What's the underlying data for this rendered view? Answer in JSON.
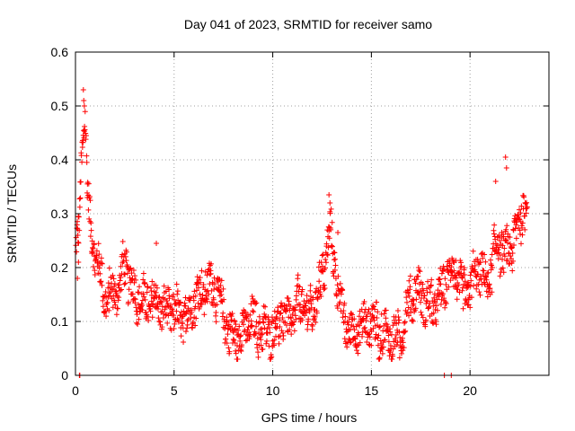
{
  "chart_data": {
    "type": "scatter",
    "title": "Day 041 of 2023, SRMTID for receiver samo",
    "xlabel": "GPS time / hours",
    "ylabel": "SRMTID / TECUs",
    "xlim": [
      0,
      24
    ],
    "ylim": [
      0,
      0.6
    ],
    "x_ticks": [
      0,
      5,
      10,
      15,
      20
    ],
    "x_tick_labels": [
      "0",
      "5",
      "10",
      "15",
      "20"
    ],
    "y_ticks": [
      0,
      0.1,
      0.2,
      0.3,
      0.4,
      0.5,
      0.6
    ],
    "y_tick_labels": [
      "0",
      "0.1",
      "0.2",
      "0.3",
      "0.4",
      "0.5",
      "0.6"
    ],
    "grid": true,
    "marker": "plus",
    "series_color": "#ff0000",
    "trend": [
      [
        0.0,
        0.22
      ],
      [
        0.2,
        0.28
      ],
      [
        0.35,
        0.44
      ],
      [
        0.5,
        0.48
      ],
      [
        0.65,
        0.31
      ],
      [
        0.9,
        0.24
      ],
      [
        1.2,
        0.2
      ],
      [
        1.5,
        0.14
      ],
      [
        1.8,
        0.15
      ],
      [
        2.2,
        0.16
      ],
      [
        2.5,
        0.21
      ],
      [
        2.8,
        0.17
      ],
      [
        3.2,
        0.14
      ],
      [
        3.6,
        0.13
      ],
      [
        4.0,
        0.14
      ],
      [
        4.5,
        0.12
      ],
      [
        5.0,
        0.12
      ],
      [
        5.5,
        0.1
      ],
      [
        6.0,
        0.14
      ],
      [
        6.5,
        0.16
      ],
      [
        7.0,
        0.17
      ],
      [
        7.4,
        0.13
      ],
      [
        7.8,
        0.08
      ],
      [
        8.2,
        0.07
      ],
      [
        8.6,
        0.09
      ],
      [
        9.0,
        0.1
      ],
      [
        9.5,
        0.08
      ],
      [
        10.0,
        0.08
      ],
      [
        10.5,
        0.11
      ],
      [
        11.0,
        0.1
      ],
      [
        11.4,
        0.14
      ],
      [
        11.8,
        0.11
      ],
      [
        12.2,
        0.14
      ],
      [
        12.6,
        0.2
      ],
      [
        12.9,
        0.27
      ],
      [
        13.2,
        0.19
      ],
      [
        13.6,
        0.1
      ],
      [
        14.0,
        0.08
      ],
      [
        14.5,
        0.09
      ],
      [
        15.0,
        0.1
      ],
      [
        15.5,
        0.08
      ],
      [
        16.0,
        0.07
      ],
      [
        16.5,
        0.07
      ],
      [
        16.9,
        0.14
      ],
      [
        17.4,
        0.16
      ],
      [
        17.8,
        0.13
      ],
      [
        18.3,
        0.13
      ],
      [
        18.8,
        0.18
      ],
      [
        19.2,
        0.2
      ],
      [
        19.6,
        0.15
      ],
      [
        20.0,
        0.16
      ],
      [
        20.4,
        0.2
      ],
      [
        20.9,
        0.17
      ],
      [
        21.4,
        0.25
      ],
      [
        21.8,
        0.22
      ],
      [
        22.2,
        0.25
      ],
      [
        22.6,
        0.3
      ],
      [
        22.9,
        0.32
      ]
    ],
    "spread": 0.035,
    "outliers": [
      [
        0.1,
        0.18
      ],
      [
        0.12,
        0.26
      ],
      [
        0.15,
        0.21
      ],
      [
        0.2,
        0.0
      ],
      [
        0.22,
        0.0
      ],
      [
        0.4,
        0.53
      ],
      [
        0.42,
        0.51
      ],
      [
        0.45,
        0.5
      ],
      [
        0.6,
        0.33
      ],
      [
        4.1,
        0.245
      ],
      [
        12.85,
        0.335
      ],
      [
        12.9,
        0.32
      ],
      [
        13.3,
        0.265
      ],
      [
        18.7,
        0.0
      ],
      [
        19.05,
        0.0
      ],
      [
        21.8,
        0.405
      ],
      [
        21.85,
        0.385
      ],
      [
        21.3,
        0.36
      ]
    ]
  }
}
